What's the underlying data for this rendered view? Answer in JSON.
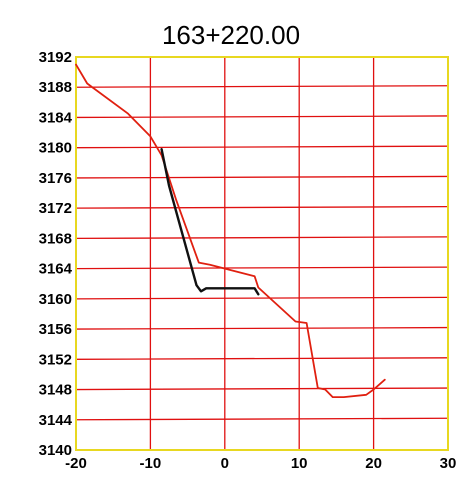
{
  "chart_data": {
    "type": "line",
    "title": "163+220.00",
    "xlabel": "",
    "ylabel": "",
    "xlim": [
      -20,
      30
    ],
    "ylim": [
      3140,
      3192
    ],
    "x_ticks": [
      -20,
      -10,
      0,
      10,
      20,
      30
    ],
    "y_ticks": [
      3192,
      3188,
      3184,
      3180,
      3176,
      3172,
      3168,
      3164,
      3160,
      3156,
      3152,
      3148,
      3144,
      3140
    ],
    "grid": true,
    "colors": {
      "frame": "#e8d820",
      "grid": "#e01010",
      "ground_line": "#e02010",
      "design_line": "#111111"
    },
    "series": [
      {
        "key": "ground",
        "color": "#e02010",
        "points": [
          [
            -20,
            3191
          ],
          [
            -18.5,
            3188.5
          ],
          [
            -13,
            3184.5
          ],
          [
            -10,
            3181.5
          ],
          [
            -8.5,
            3179
          ],
          [
            -6.5,
            3173
          ],
          [
            -3.5,
            3164.8
          ],
          [
            -2,
            3164.5
          ],
          [
            4,
            3163
          ],
          [
            4.5,
            3161.5
          ],
          [
            9.5,
            3157
          ],
          [
            11,
            3156.8
          ],
          [
            12.5,
            3148.2
          ],
          [
            13.5,
            3148
          ],
          [
            14.5,
            3147
          ],
          [
            16,
            3147
          ],
          [
            19,
            3147.3
          ],
          [
            20,
            3148
          ],
          [
            21.5,
            3149.3
          ]
        ]
      },
      {
        "key": "design",
        "color": "#111111",
        "points": [
          [
            -8.5,
            3179.8
          ],
          [
            -7.5,
            3175
          ],
          [
            -3.8,
            3161.8
          ],
          [
            -3.2,
            3161
          ],
          [
            -2.5,
            3161.4
          ],
          [
            4,
            3161.4
          ],
          [
            4.5,
            3160.6
          ]
        ]
      }
    ]
  }
}
